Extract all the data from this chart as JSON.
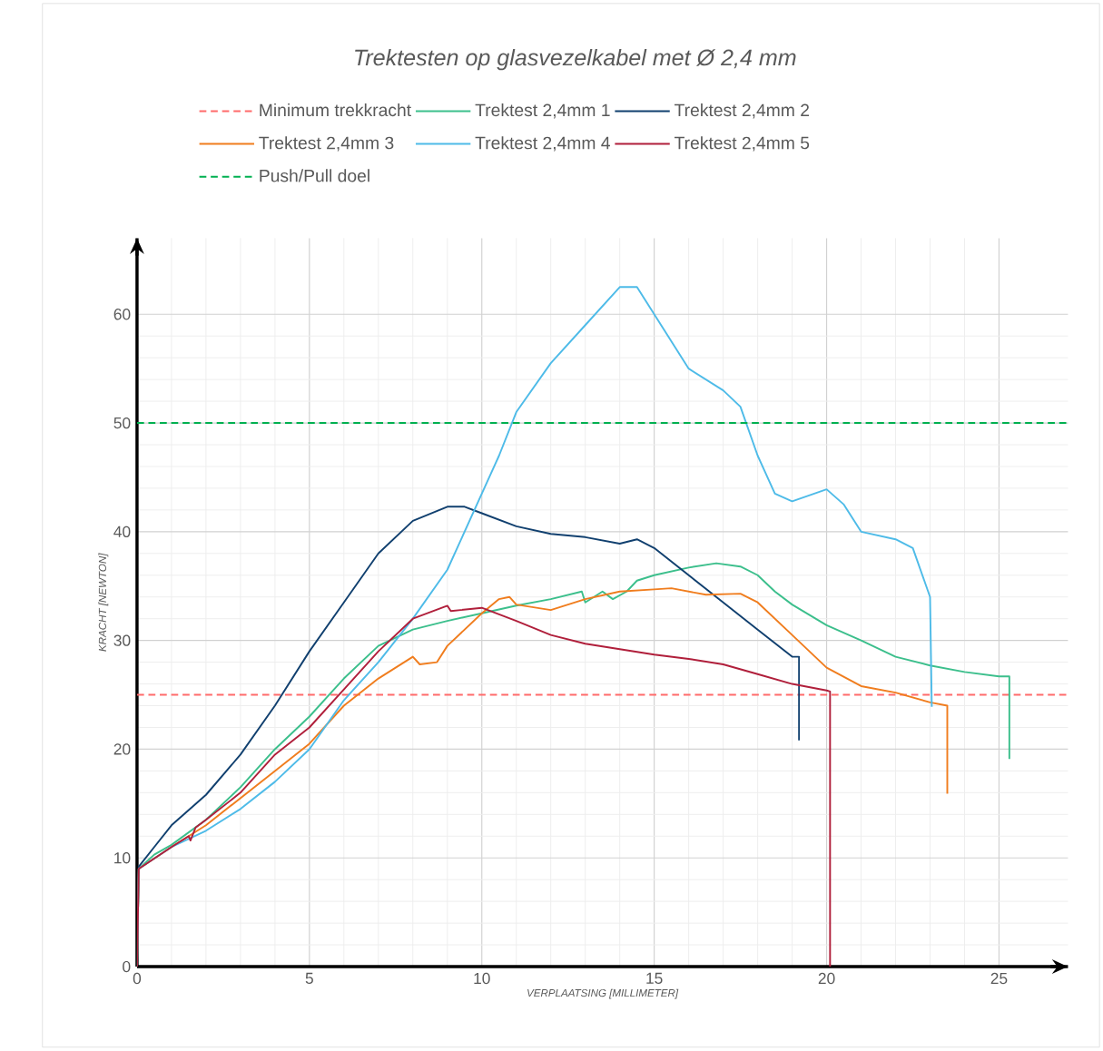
{
  "chart_data": {
    "type": "line",
    "title": "*Trektesten op glasvezelkabel met Ø 2,4 mm*",
    "xlabel": "*VERPLAATSING [MILLIMETER]*",
    "ylabel": "*KRACHT [NEWTON]*",
    "xlim": [
      0,
      27
    ],
    "ylim": [
      0,
      67
    ],
    "xticks": [
      0,
      5,
      10,
      15,
      20,
      25
    ],
    "yticks": [
      0,
      10,
      20,
      30,
      40,
      50,
      60
    ],
    "grid": true,
    "legend": "top",
    "ref_lines": [
      {
        "axis": "y",
        "value": 25,
        "label": "Minimum trekkracht",
        "color": "#ff6b6b",
        "line_style": "dashed"
      },
      {
        "axis": "y",
        "value": 50,
        "label": "Push/Pull doel",
        "color": "#00b050",
        "line_style": "dashed"
      }
    ],
    "series": [
      {
        "name": "Trektest 2,4mm 1",
        "color": "#3cbf8c",
        "x": [
          0,
          0.05,
          0.5,
          1,
          2,
          3,
          4,
          5,
          6,
          7,
          8,
          9,
          10,
          11,
          12,
          12.9,
          13,
          13.5,
          13.8,
          14.2,
          14.5,
          15,
          16,
          16.8,
          17.5,
          18,
          18.5,
          19,
          20,
          21,
          22,
          23,
          24,
          25,
          25.3,
          25.3
        ],
        "values": [
          0,
          9,
          10.3,
          11.2,
          13.5,
          16.5,
          20,
          23,
          26.5,
          29.5,
          31,
          31.8,
          32.5,
          33.2,
          33.8,
          34.5,
          33.5,
          34.5,
          33.8,
          34.5,
          35.5,
          36,
          36.7,
          37.1,
          36.8,
          36,
          34.5,
          33.3,
          31.4,
          30,
          28.5,
          27.7,
          27.1,
          26.7,
          26.7,
          19.1
        ]
      },
      {
        "name": "Trektest 2,4mm 2",
        "color": "#11406f",
        "x": [
          0,
          0.05,
          0.5,
          1,
          2,
          3,
          4,
          5,
          6,
          7,
          8,
          9,
          9.5,
          10,
          11,
          12,
          13,
          14,
          14.5,
          15,
          16,
          17,
          18,
          19,
          19.2,
          19.2
        ],
        "values": [
          0,
          9.2,
          11,
          13,
          15.8,
          19.5,
          24,
          29,
          33.5,
          38,
          41,
          42.3,
          42.3,
          41.7,
          40.5,
          39.8,
          39.5,
          38.9,
          39.3,
          38.5,
          36,
          33.5,
          31,
          28.5,
          28.5,
          20.8
        ]
      },
      {
        "name": "Trektest 2,4mm 3",
        "color": "#f07d1e",
        "x": [
          0,
          0.05,
          1,
          2,
          3,
          4,
          5,
          6,
          7,
          8,
          8.2,
          8.7,
          9,
          10,
          10.5,
          10.8,
          11,
          12,
          13,
          14,
          15,
          15.5,
          16.5,
          17.5,
          18,
          19,
          20,
          21,
          22,
          23,
          23.5,
          23.5
        ],
        "values": [
          0,
          9,
          11,
          13,
          15.5,
          18,
          20.5,
          24,
          26.5,
          28.5,
          27.8,
          28,
          29.5,
          32.5,
          33.8,
          34,
          33.3,
          32.8,
          33.8,
          34.5,
          34.7,
          34.8,
          34.2,
          34.3,
          33.5,
          30.5,
          27.5,
          25.8,
          25.2,
          24.3,
          24,
          15.9
        ]
      },
      {
        "name": "Trektest 2,4mm 4",
        "color": "#4ebbe8",
        "x": [
          0,
          0.05,
          1,
          2,
          3,
          4,
          5,
          6,
          7,
          8,
          9,
          10,
          10.5,
          11,
          12,
          13,
          14,
          14.5,
          15,
          16,
          17,
          17.5,
          18,
          18.5,
          19,
          20,
          20.5,
          21,
          22,
          22.5,
          23,
          23.05
        ],
        "values": [
          0,
          9,
          11,
          12.5,
          14.5,
          17,
          20,
          24.5,
          28,
          32,
          36.5,
          43.5,
          47,
          51,
          55.5,
          59,
          62.5,
          62.5,
          60,
          55,
          53,
          51.5,
          47,
          43.5,
          42.8,
          43.9,
          42.5,
          40,
          39.3,
          38.5,
          34,
          23.9
        ]
      },
      {
        "name": "Trektest 2,4mm 5",
        "color": "#b01f3b",
        "x": [
          0,
          0.05,
          1,
          1.5,
          1.55,
          1.7,
          2,
          3,
          4,
          5,
          6,
          7,
          8,
          9,
          9.1,
          10,
          11,
          12,
          13,
          14,
          15,
          16,
          17,
          18,
          19,
          20,
          20.1,
          20.1
        ],
        "values": [
          0,
          9,
          11,
          12,
          11.6,
          12.8,
          13.5,
          16,
          19.5,
          22,
          25.5,
          29,
          32,
          33.2,
          32.7,
          33,
          31.8,
          30.5,
          29.7,
          29.2,
          28.7,
          28.3,
          27.8,
          26.9,
          26,
          25.4,
          25.3,
          0
        ]
      }
    ]
  }
}
